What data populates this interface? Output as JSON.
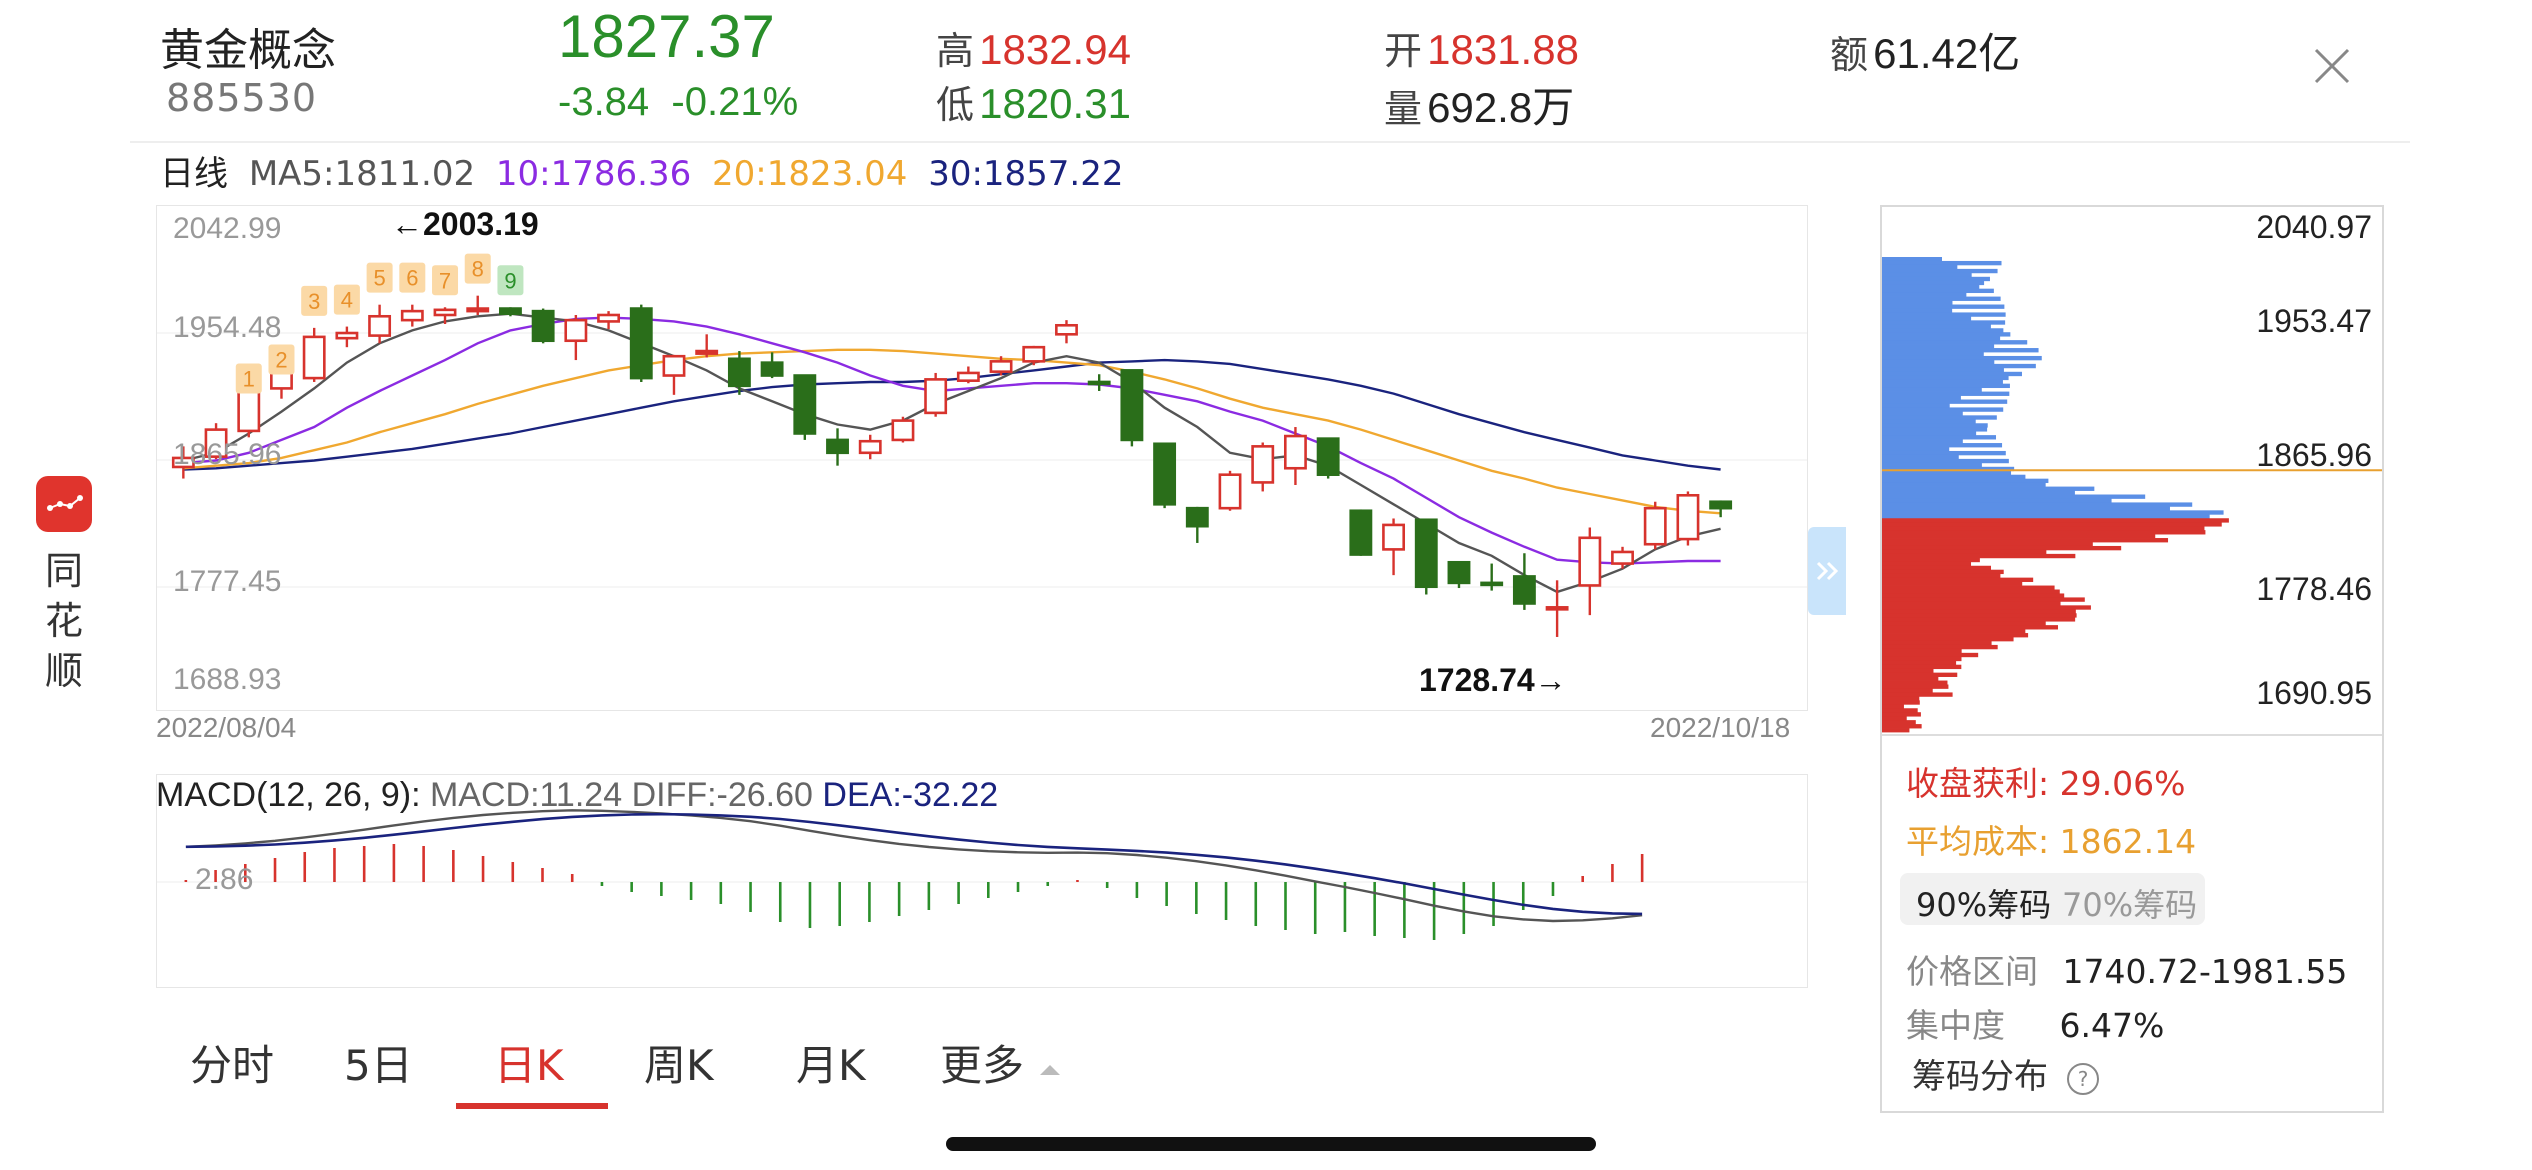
{
  "header": {
    "name": "黄金概念",
    "code": "885530",
    "price": "1827.37",
    "change": "-3.84",
    "change_pct": "-0.21%",
    "high_label": "高",
    "high": "1832.94",
    "low_label": "低",
    "low": "1820.31",
    "open_label": "开",
    "open": "1831.88",
    "volume_label": "量",
    "volume": "692.8万",
    "amount_label": "额",
    "amount": "61.42亿"
  },
  "ma_legend": {
    "period": "日线",
    "ma5": "MA5:1811.02",
    "ma10": "10:1786.36",
    "ma20": "20:1823.04",
    "ma30": "30:1857.22"
  },
  "colors": {
    "up": "#d7332d",
    "down": "#2a6e1a",
    "ma5": "#555555",
    "ma10": "#8b2be2",
    "ma20": "#f0a830",
    "ma30": "#1a237e",
    "chip_profit": "#d7332d",
    "chip_loss": "#5b8fe6",
    "avg_cost": "#e8a030"
  },
  "chart": {
    "y_labels": [
      "2042.99",
      "1954.48",
      "1865.96",
      "1777.45",
      "1688.93"
    ],
    "start_date": "2022/08/04",
    "end_date": "2022/10/18",
    "high_annotation": "←2003.19",
    "low_annotation": "1728.74→",
    "nine_turn_marks": [
      "1",
      "2",
      "3",
      "4",
      "5",
      "6",
      "7",
      "8",
      "9"
    ]
  },
  "chart_data": {
    "type": "candlestick",
    "ylim": [
      1688.93,
      2042.99
    ],
    "candles": [
      [
        1859,
        1875,
        1850,
        1866
      ],
      [
        1867,
        1893,
        1865,
        1888
      ],
      [
        1887,
        1930,
        1882,
        1925
      ],
      [
        1920,
        1937,
        1912,
        1932
      ],
      [
        1928,
        1967,
        1925,
        1960
      ],
      [
        1959,
        1968,
        1952,
        1963
      ],
      [
        1961,
        1985,
        1955,
        1976
      ],
      [
        1973,
        1985,
        1968,
        1980
      ],
      [
        1977,
        1983,
        1970,
        1981
      ],
      [
        1980,
        1992,
        1977,
        1982
      ],
      [
        1982,
        1983,
        1976,
        1978
      ],
      [
        1980,
        1982,
        1955,
        1957
      ],
      [
        1957,
        1977,
        1942,
        1973
      ],
      [
        1972,
        1980,
        1966,
        1977
      ],
      [
        1982,
        1985,
        1925,
        1928
      ],
      [
        1930,
        1946,
        1915,
        1945
      ],
      [
        1947,
        1962,
        1944,
        1949
      ],
      [
        1943,
        1949,
        1915,
        1922
      ],
      [
        1940,
        1948,
        1928,
        1930
      ],
      [
        1930,
        1929,
        1880,
        1885
      ],
      [
        1880,
        1889,
        1860,
        1870
      ],
      [
        1870,
        1884,
        1865,
        1879
      ],
      [
        1880,
        1898,
        1878,
        1895
      ],
      [
        1901,
        1932,
        1898,
        1927
      ],
      [
        1926,
        1937,
        1924,
        1932
      ],
      [
        1933,
        1945,
        1930,
        1941
      ],
      [
        1941,
        1953,
        1938,
        1952
      ],
      [
        1962,
        1973,
        1955,
        1969
      ],
      [
        1925,
        1931,
        1918,
        1924
      ],
      [
        1934,
        1932,
        1875,
        1880
      ],
      [
        1877,
        1878,
        1827,
        1830
      ],
      [
        1827,
        1828,
        1800,
        1813
      ],
      [
        1827,
        1856,
        1825,
        1853
      ],
      [
        1847,
        1878,
        1840,
        1875
      ],
      [
        1858,
        1890,
        1845,
        1883
      ],
      [
        1881,
        1879,
        1850,
        1853
      ],
      [
        1825,
        1826,
        1790,
        1791
      ],
      [
        1795,
        1819,
        1775,
        1814
      ],
      [
        1818,
        1819,
        1760,
        1766
      ],
      [
        1785,
        1785,
        1765,
        1769
      ],
      [
        1769,
        1784,
        1763,
        1768
      ],
      [
        1774,
        1792,
        1748,
        1753
      ],
      [
        1750,
        1771,
        1727,
        1750
      ],
      [
        1767,
        1812,
        1744,
        1804
      ],
      [
        1784,
        1797,
        1780,
        1793
      ],
      [
        1799,
        1832,
        1795,
        1827
      ],
      [
        1803,
        1840,
        1798,
        1837
      ],
      [
        1832,
        1833,
        1820,
        1827
      ]
    ],
    "ma5": [
      1864,
      1870,
      1885,
      1902,
      1920,
      1940,
      1955,
      1965,
      1972,
      1976,
      1978,
      1975,
      1972,
      1965,
      1955,
      1945,
      1934,
      1920,
      1910,
      1900,
      1892,
      1888,
      1895,
      1908,
      1918,
      1928,
      1940,
      1945,
      1940,
      1925,
      1905,
      1890,
      1870,
      1865,
      1868,
      1860,
      1845,
      1830,
      1815,
      1800,
      1790,
      1775,
      1762,
      1770,
      1780,
      1795,
      1805,
      1811
    ],
    "ma10": [
      1862,
      1864,
      1870,
      1880,
      1890,
      1905,
      1918,
      1930,
      1942,
      1955,
      1965,
      1970,
      1974,
      1975,
      1974,
      1972,
      1968,
      1962,
      1955,
      1948,
      1940,
      1930,
      1922,
      1918,
      1920,
      1922,
      1924,
      1924,
      1923,
      1920,
      1915,
      1910,
      1902,
      1895,
      1885,
      1875,
      1862,
      1850,
      1835,
      1820,
      1808,
      1797,
      1787,
      1785,
      1784,
      1785,
      1786,
      1786
    ],
    "ma20": [
      1858,
      1860,
      1862,
      1866,
      1872,
      1878,
      1886,
      1893,
      1900,
      1908,
      1915,
      1922,
      1928,
      1934,
      1938,
      1942,
      1945,
      1947,
      1948,
      1949,
      1950,
      1950,
      1949,
      1947,
      1945,
      1943,
      1942,
      1940,
      1938,
      1933,
      1927,
      1920,
      1912,
      1905,
      1900,
      1895,
      1888,
      1880,
      1872,
      1864,
      1856,
      1850,
      1843,
      1838,
      1833,
      1828,
      1825,
      1823
    ],
    "ma30": [
      1857,
      1858,
      1860,
      1862,
      1864,
      1867,
      1870,
      1873,
      1877,
      1881,
      1885,
      1890,
      1895,
      1900,
      1905,
      1910,
      1914,
      1918,
      1921,
      1923,
      1924,
      1925,
      1925,
      1926,
      1928,
      1931,
      1934,
      1937,
      1940,
      1941,
      1942,
      1941,
      1939,
      1935,
      1931,
      1927,
      1922,
      1916,
      1908,
      1900,
      1893,
      1886,
      1880,
      1874,
      1868,
      1864,
      1860,
      1857
    ]
  },
  "macd": {
    "title": "MACD(12, 26, 9):",
    "macd_text": "MACD:11.24",
    "diff_text": "DIFF:-26.60",
    "dea_text": "DEA:-32.22",
    "zero_label": "2.86",
    "hist": [
      2,
      12,
      18,
      24,
      30,
      34,
      36,
      38,
      36,
      32,
      26,
      20,
      14,
      8,
      -4,
      -10,
      -14,
      -18,
      -22,
      -30,
      -40,
      -46,
      -44,
      -40,
      -34,
      -28,
      -22,
      -16,
      -10,
      -4,
      2,
      -6,
      -16,
      -24,
      -32,
      -38,
      -44,
      -48,
      -52,
      -50,
      -54,
      -56,
      -58,
      -52,
      -44,
      -28,
      -14,
      6,
      18,
      28
    ]
  },
  "tabs": [
    {
      "label": "分时",
      "active": false
    },
    {
      "label": "5日",
      "active": false
    },
    {
      "label": "日K",
      "active": true
    },
    {
      "label": "周K",
      "active": false
    },
    {
      "label": "月K",
      "active": false
    },
    {
      "label": "更多",
      "active": false
    }
  ],
  "brand": {
    "label": "同花顺",
    "icon": "ths-logo-icon"
  },
  "chip": {
    "price_labels": [
      "2040.97",
      "1953.47",
      "1865.96",
      "1778.46",
      "1690.95"
    ],
    "profit_label": "收盘获利:",
    "profit_value": "29.06%",
    "avg_cost_label": "平均成本:",
    "avg_cost_value": "1862.14",
    "toggle_90": "90%筹码",
    "toggle_70": "70%筹码",
    "range_label": "价格区间",
    "range_value": "1740.72-1981.55",
    "concentration_label": "集中度",
    "concentration_value": "6.47%",
    "dist_label": "筹码分布",
    "help_icon": "help-circle-icon"
  }
}
